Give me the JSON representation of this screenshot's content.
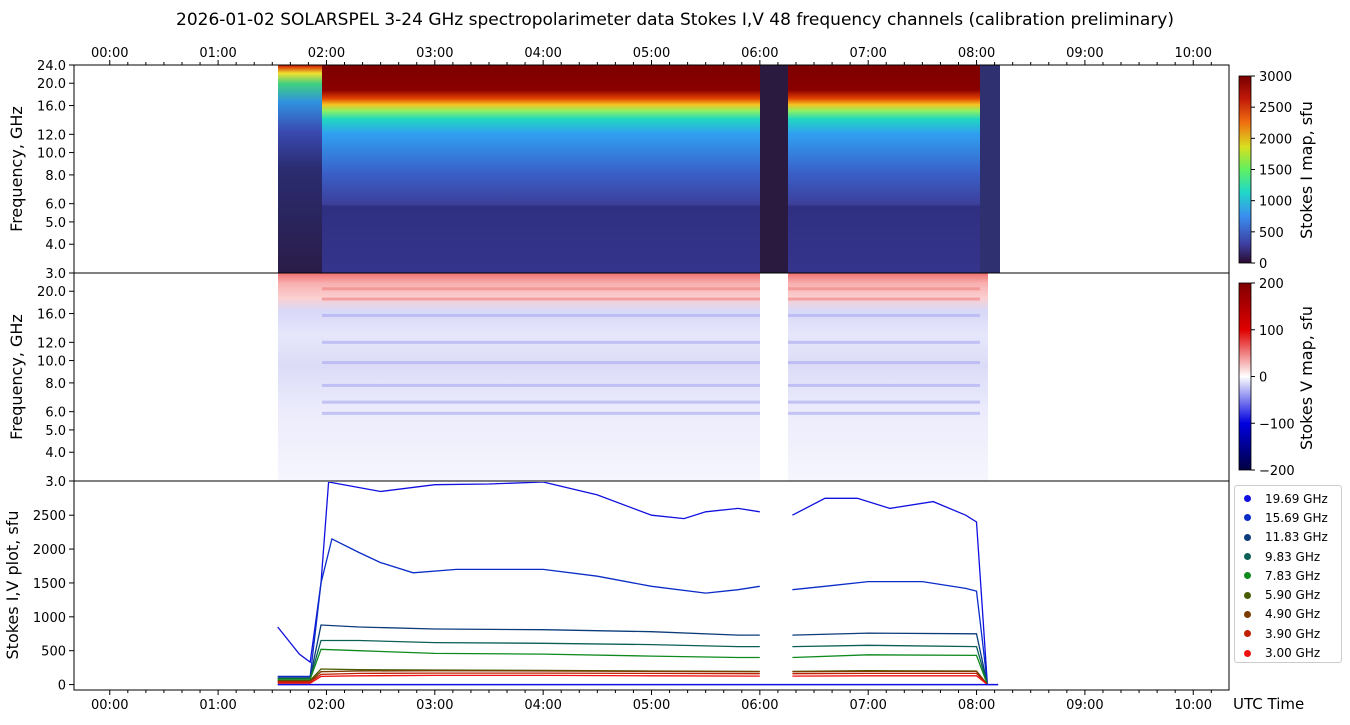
{
  "title": "2026-01-02  SOLARSPEL  3-24 GHz spectropolarimeter data   Stokes I,V   48 frequency channels   (calibration preliminary)",
  "colors": {
    "stokes_i_cmap": "jet-like",
    "stokes_v_cmap": "seismic",
    "axes": "#000000"
  },
  "chart_data": [
    {
      "type": "heatmap",
      "name_on_chart": "",
      "ylabel": "Frequency, GHz",
      "xticks": [
        "00:00",
        "01:00",
        "02:00",
        "03:00",
        "04:00",
        "05:00",
        "06:00",
        "07:00",
        "08:00",
        "09:00",
        "10:00"
      ],
      "yticks": [
        "3.0",
        "4.0",
        "5.0",
        "6.0",
        "8.0",
        "10.0",
        "12.0",
        "16.0",
        "20.0",
        "24.0"
      ],
      "ylim": [
        3,
        24
      ],
      "yscale": "log",
      "xlim_hours": [
        -0.33,
        10.33
      ],
      "data_span_hours": [
        1.55,
        8.2
      ],
      "gap_hours": [
        6.0,
        6.25
      ],
      "colorbar": {
        "label": "Stokes I map, sfu",
        "ticks": [
          "0",
          "500",
          "1000",
          "1500",
          "2000",
          "2500",
          "3000"
        ],
        "range": [
          0,
          3000
        ]
      }
    },
    {
      "type": "heatmap",
      "ylabel": "Frequency, GHz",
      "yticks": [
        "3.0",
        "4.0",
        "5.0",
        "6.0",
        "8.0",
        "10.0",
        "12.0",
        "16.0",
        "20.0"
      ],
      "ylim": [
        3,
        24
      ],
      "yscale": "log",
      "colorbar": {
        "label": "Stokes V map, sfu",
        "ticks": [
          "200",
          "100",
          "0",
          "−100",
          "−200"
        ],
        "range": [
          -200,
          200
        ]
      }
    },
    {
      "type": "line",
      "ylabel": "Stokes I,V plot, sfu",
      "xlabel": "UTC Time",
      "yticks": [
        "0",
        "500",
        "1000",
        "1500",
        "2000",
        "2500"
      ],
      "ylim": [
        -80,
        2990
      ],
      "xticks": [
        "00:00",
        "01:00",
        "02:00",
        "03:00",
        "04:00",
        "05:00",
        "06:00",
        "07:00",
        "08:00",
        "09:00",
        "10:00"
      ],
      "series": [
        {
          "name": "19.69 GHz",
          "color": "#1010e0",
          "points": [
            [
              1.55,
              850
            ],
            [
              1.65,
              650
            ],
            [
              1.75,
              450
            ],
            [
              1.85,
              330
            ],
            [
              1.95,
              1500
            ],
            [
              2.02,
              2990
            ],
            [
              2.5,
              2850
            ],
            [
              3.0,
              2950
            ],
            [
              3.5,
              2960
            ],
            [
              4.0,
              2990
            ],
            [
              4.5,
              2800
            ],
            [
              5.0,
              2500
            ],
            [
              5.3,
              2450
            ],
            [
              5.5,
              2550
            ],
            [
              5.8,
              2600
            ],
            [
              6.0,
              2550
            ],
            [
              6.3,
              2500
            ],
            [
              6.6,
              2750
            ],
            [
              6.9,
              2750
            ],
            [
              7.2,
              2600
            ],
            [
              7.6,
              2700
            ],
            [
              7.9,
              2500
            ],
            [
              8.0,
              2400
            ],
            [
              8.05,
              1200
            ],
            [
              8.1,
              0
            ]
          ]
        },
        {
          "name": "15.69 GHz",
          "color": "#0a2cc8",
          "points": [
            [
              1.55,
              120
            ],
            [
              1.85,
              120
            ],
            [
              1.95,
              1500
            ],
            [
              2.05,
              2150
            ],
            [
              2.3,
              1950
            ],
            [
              2.5,
              1800
            ],
            [
              2.8,
              1650
            ],
            [
              3.2,
              1700
            ],
            [
              3.6,
              1700
            ],
            [
              4.0,
              1700
            ],
            [
              4.5,
              1600
            ],
            [
              5.0,
              1450
            ],
            [
              5.5,
              1350
            ],
            [
              5.8,
              1400
            ],
            [
              6.0,
              1450
            ],
            [
              6.3,
              1400
            ],
            [
              6.6,
              1450
            ],
            [
              7.0,
              1520
            ],
            [
              7.5,
              1520
            ],
            [
              7.9,
              1420
            ],
            [
              8.0,
              1380
            ],
            [
              8.05,
              700
            ],
            [
              8.1,
              0
            ]
          ]
        },
        {
          "name": "11.83 GHz",
          "color": "#0c3c7a",
          "points": [
            [
              1.55,
              100
            ],
            [
              1.85,
              100
            ],
            [
              1.95,
              880
            ],
            [
              2.3,
              850
            ],
            [
              3.0,
              820
            ],
            [
              4.0,
              810
            ],
            [
              5.0,
              780
            ],
            [
              5.8,
              730
            ],
            [
              6.0,
              730
            ],
            [
              6.3,
              730
            ],
            [
              7.0,
              760
            ],
            [
              8.0,
              750
            ],
            [
              8.1,
              0
            ]
          ]
        },
        {
          "name": "9.83 GHz",
          "color": "#0b5f55",
          "points": [
            [
              1.55,
              90
            ],
            [
              1.85,
              90
            ],
            [
              1.95,
              650
            ],
            [
              2.3,
              650
            ],
            [
              3.0,
              620
            ],
            [
              4.0,
              610
            ],
            [
              5.0,
              590
            ],
            [
              5.8,
              560
            ],
            [
              6.0,
              560
            ],
            [
              6.3,
              560
            ],
            [
              7.0,
              580
            ],
            [
              8.0,
              560
            ],
            [
              8.1,
              0
            ]
          ]
        },
        {
          "name": "7.83 GHz",
          "color": "#0e8a1e",
          "points": [
            [
              1.55,
              80
            ],
            [
              1.85,
              80
            ],
            [
              1.95,
              520
            ],
            [
              2.3,
              500
            ],
            [
              3.0,
              460
            ],
            [
              4.0,
              450
            ],
            [
              5.0,
              420
            ],
            [
              5.8,
              400
            ],
            [
              6.0,
              400
            ],
            [
              6.3,
              400
            ],
            [
              7.0,
              440
            ],
            [
              8.0,
              430
            ],
            [
              8.1,
              0
            ]
          ]
        },
        {
          "name": "5.90 GHz",
          "color": "#4a5c00",
          "points": [
            [
              1.55,
              60
            ],
            [
              1.85,
              60
            ],
            [
              1.95,
              230
            ],
            [
              2.3,
              220
            ],
            [
              3.0,
              215
            ],
            [
              4.0,
              210
            ],
            [
              5.0,
              200
            ],
            [
              6.0,
              195
            ],
            [
              6.3,
              195
            ],
            [
              7.0,
              205
            ],
            [
              8.0,
              200
            ],
            [
              8.1,
              0
            ]
          ]
        },
        {
          "name": "4.90 GHz",
          "color": "#7a3c00",
          "points": [
            [
              1.55,
              50
            ],
            [
              1.85,
              50
            ],
            [
              1.95,
              190
            ],
            [
              2.3,
              200
            ],
            [
              3.0,
              205
            ],
            [
              4.0,
              200
            ],
            [
              5.0,
              195
            ],
            [
              6.0,
              190
            ],
            [
              6.3,
              190
            ],
            [
              7.0,
              195
            ],
            [
              8.0,
              195
            ],
            [
              8.1,
              0
            ]
          ]
        },
        {
          "name": "3.90 GHz",
          "color": "#c02000",
          "points": [
            [
              1.55,
              40
            ],
            [
              1.85,
              40
            ],
            [
              1.95,
              150
            ],
            [
              2.3,
              165
            ],
            [
              3.0,
              170
            ],
            [
              4.0,
              170
            ],
            [
              5.0,
              165
            ],
            [
              6.0,
              160
            ],
            [
              6.3,
              160
            ],
            [
              7.0,
              165
            ],
            [
              8.0,
              165
            ],
            [
              8.1,
              0
            ]
          ]
        },
        {
          "name": "3.00 GHz",
          "color": "#ee1010",
          "points": [
            [
              1.55,
              20
            ],
            [
              1.85,
              20
            ],
            [
              1.95,
              120
            ],
            [
              2.3,
              130
            ],
            [
              3.0,
              135
            ],
            [
              4.0,
              135
            ],
            [
              5.0,
              130
            ],
            [
              6.0,
              125
            ],
            [
              6.3,
              125
            ],
            [
              7.0,
              130
            ],
            [
              8.0,
              130
            ],
            [
              8.1,
              0
            ]
          ]
        }
      ],
      "legend_placement": "right"
    }
  ]
}
